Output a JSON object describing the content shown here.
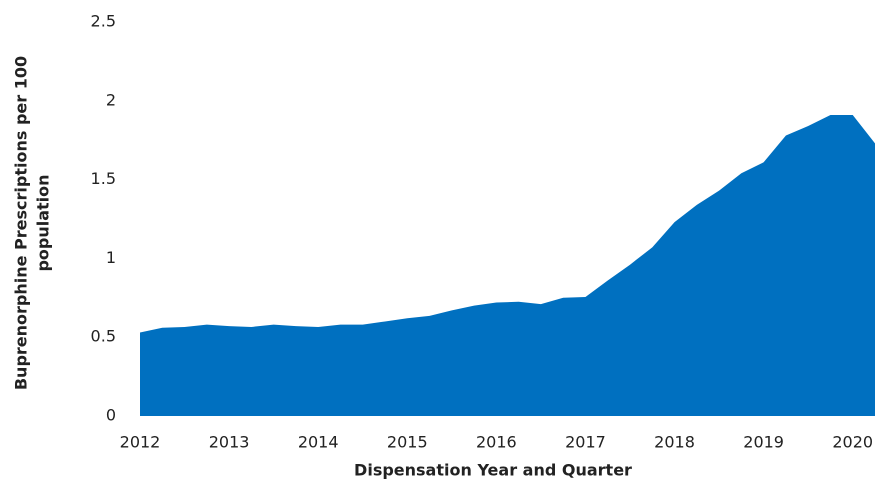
{
  "chart_data": {
    "type": "area",
    "xlabel": "Dispensation Year and Quarter",
    "ylabel": [
      "Buprenorphine Prescriptions per 100",
      "population"
    ],
    "categories": [
      "2012",
      null,
      null,
      null,
      "2013",
      null,
      null,
      null,
      "2014",
      null,
      null,
      null,
      "2015",
      null,
      null,
      null,
      "2016",
      null,
      null,
      null,
      "2017",
      null,
      null,
      null,
      "2018",
      null,
      null,
      null,
      "2019",
      null,
      null,
      null,
      "2020",
      null
    ],
    "values": [
      0.53,
      0.56,
      0.565,
      0.58,
      0.57,
      0.565,
      0.58,
      0.57,
      0.565,
      0.58,
      0.58,
      0.6,
      0.62,
      0.635,
      0.67,
      0.7,
      0.72,
      0.725,
      0.71,
      0.75,
      0.755,
      0.86,
      0.96,
      1.07,
      1.23,
      1.34,
      1.43,
      1.54,
      1.61,
      1.78,
      1.84,
      1.91,
      1.91,
      1.73
    ],
    "color": "#0070c0",
    "ylim": [
      0,
      2.5
    ],
    "yticks": [
      0,
      0.5,
      1,
      1.5,
      2,
      2.5
    ],
    "grid": false
  }
}
